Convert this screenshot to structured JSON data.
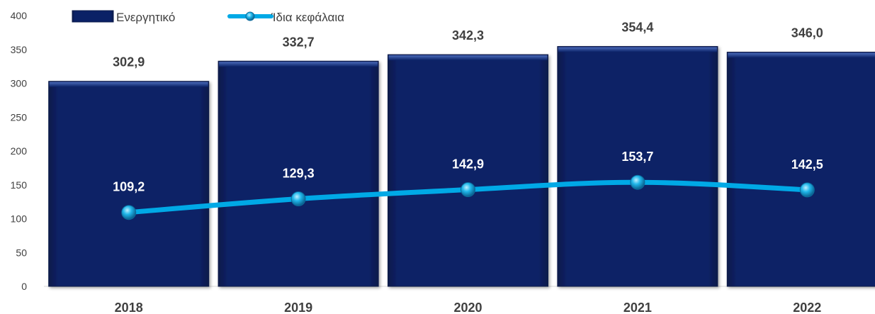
{
  "chart_data": {
    "type": "bar",
    "categories": [
      "2018",
      "2019",
      "2020",
      "2021",
      "2022"
    ],
    "series": [
      {
        "name": "Ενεργητικό",
        "type": "bar",
        "values": [
          302.9,
          332.7,
          342.3,
          354.4,
          346.0
        ],
        "labels": [
          "302,9",
          "332,7",
          "342,3",
          "354,4",
          "346,0"
        ],
        "color": "#0a2166"
      },
      {
        "name": "Ίδια κεφάλαια",
        "type": "line",
        "values": [
          109.2,
          129.3,
          142.9,
          153.7,
          142.5
        ],
        "labels": [
          "109,2",
          "129,3",
          "142,9",
          "153,7",
          "142,5"
        ],
        "color": "#00a9e6"
      }
    ],
    "yticks": [
      "0",
      "50",
      "100",
      "150",
      "200",
      "250",
      "300",
      "350",
      "400"
    ],
    "ylim": [
      0,
      400
    ],
    "grid": false,
    "legend": "top-left"
  }
}
